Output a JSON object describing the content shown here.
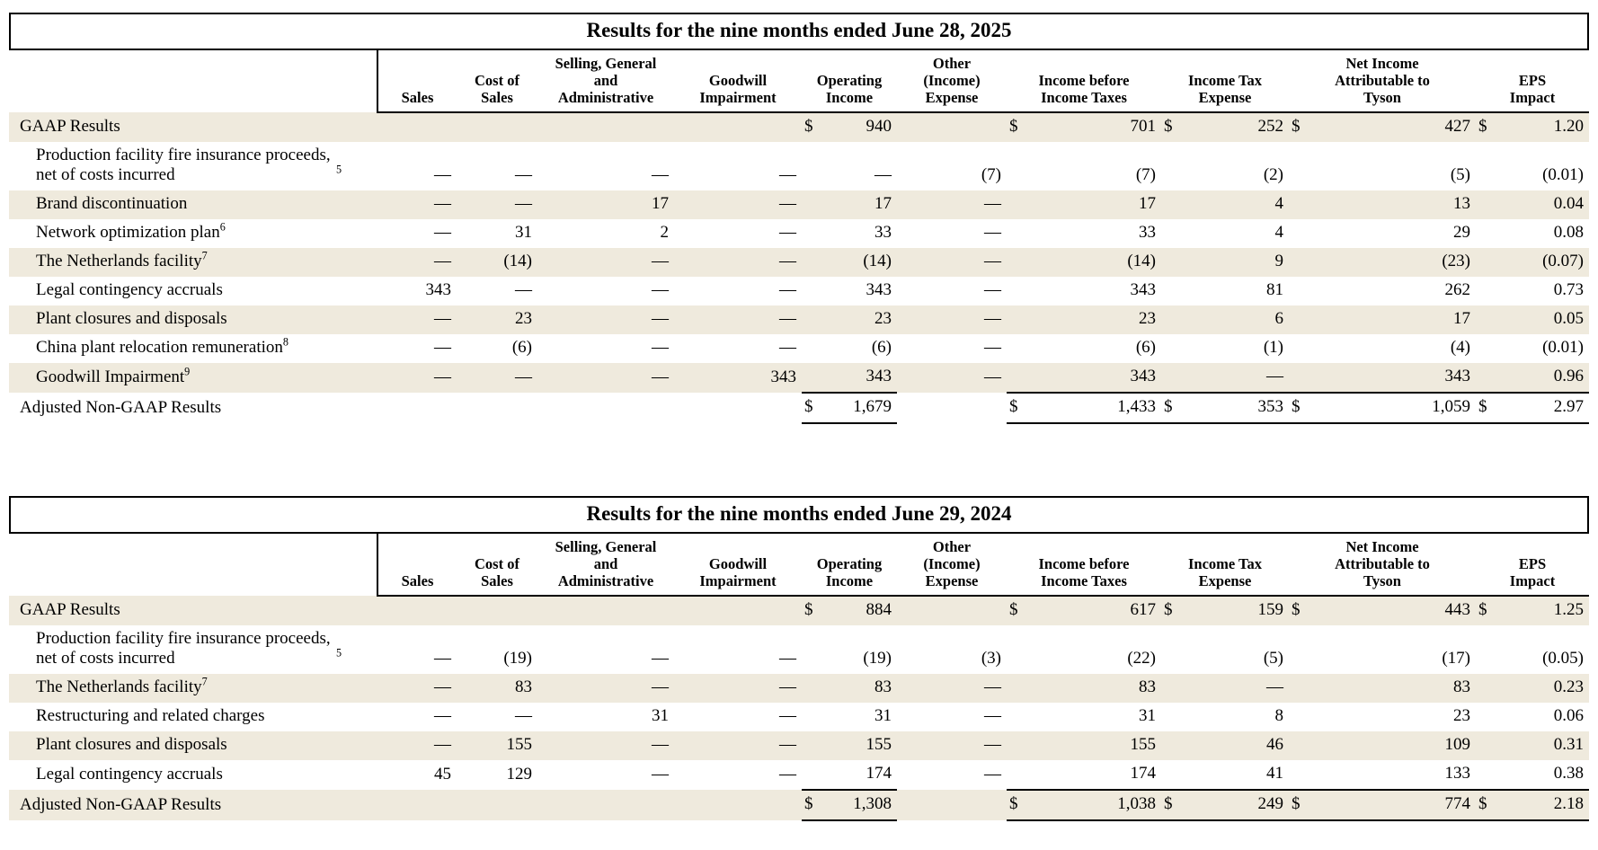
{
  "page": {
    "stripe_color": "#EFEADD",
    "text_color": "#000000",
    "dollar_sign": "$"
  },
  "tables": [
    {
      "title": "Results for the nine months ended June 28, 2025",
      "columns": [
        "Sales",
        "Cost of Sales",
        "Selling, General and Administrative",
        "Goodwill Impairment",
        "Operating Income",
        "Other (Income) Expense",
        "Income before Income Taxes",
        "Income Tax Expense",
        "Net Income Attributable to Tyson",
        "EPS Impact"
      ],
      "rows": [
        {
          "label": "GAAP Results",
          "sup": "",
          "kind": "gaap",
          "indent": false,
          "stripe": true,
          "cells": [
            "",
            "",
            "",
            "",
            "940",
            "",
            "701",
            "252",
            "427",
            "1.20"
          ]
        },
        {
          "label": "Production facility fire insurance proceeds, net of costs incurred",
          "sup": "5",
          "kind": "item",
          "indent": true,
          "stripe": false,
          "cells": [
            "—",
            "—",
            "—",
            "—",
            "—",
            "(7)",
            "(7)",
            "(2)",
            "(5)",
            "(0.01)"
          ]
        },
        {
          "label": "Brand discontinuation",
          "sup": "",
          "kind": "item",
          "indent": true,
          "stripe": true,
          "cells": [
            "—",
            "—",
            "17",
            "—",
            "17",
            "—",
            "17",
            "4",
            "13",
            "0.04"
          ]
        },
        {
          "label": "Network optimization plan",
          "sup": "6",
          "kind": "item",
          "indent": true,
          "stripe": false,
          "cells": [
            "—",
            "31",
            "2",
            "—",
            "33",
            "—",
            "33",
            "4",
            "29",
            "0.08"
          ]
        },
        {
          "label": "The Netherlands facility",
          "sup": "7",
          "kind": "item",
          "indent": true,
          "stripe": true,
          "cells": [
            "—",
            "(14)",
            "—",
            "—",
            "(14)",
            "—",
            "(14)",
            "9",
            "(23)",
            "(0.07)"
          ]
        },
        {
          "label": "Legal contingency accruals",
          "sup": "",
          "kind": "item",
          "indent": true,
          "stripe": false,
          "cells": [
            "343",
            "—",
            "—",
            "—",
            "343",
            "—",
            "343",
            "81",
            "262",
            "0.73"
          ]
        },
        {
          "label": "Plant closures and disposals",
          "sup": "",
          "kind": "item",
          "indent": true,
          "stripe": true,
          "cells": [
            "—",
            "23",
            "—",
            "—",
            "23",
            "—",
            "23",
            "6",
            "17",
            "0.05"
          ]
        },
        {
          "label": "China plant relocation remuneration",
          "sup": "8",
          "kind": "item",
          "indent": true,
          "stripe": false,
          "cells": [
            "—",
            "(6)",
            "—",
            "—",
            "(6)",
            "—",
            "(6)",
            "(1)",
            "(4)",
            "(0.01)"
          ]
        },
        {
          "label": "Goodwill Impairment",
          "sup": "9",
          "kind": "item",
          "indent": true,
          "stripe": true,
          "cells": [
            "—",
            "—",
            "—",
            "343",
            "343",
            "—",
            "343",
            "—",
            "343",
            "0.96"
          ]
        },
        {
          "label": "Adjusted Non-GAAP Results",
          "sup": "",
          "kind": "adjusted",
          "indent": false,
          "stripe": false,
          "cells": [
            "",
            "",
            "",
            "",
            "1,679",
            "",
            "1,433",
            "353",
            "1,059",
            "2.97"
          ]
        }
      ]
    },
    {
      "title": "Results for the nine months ended June 29, 2024",
      "columns": [
        "Sales",
        "Cost of Sales",
        "Selling, General and Administrative",
        "Goodwill Impairment",
        "Operating Income",
        "Other (Income) Expense",
        "Income before Income Taxes",
        "Income Tax Expense",
        "Net Income Attributable to Tyson",
        "EPS Impact"
      ],
      "rows": [
        {
          "label": "GAAP Results",
          "sup": "",
          "kind": "gaap",
          "indent": false,
          "stripe": true,
          "cells": [
            "",
            "",
            "",
            "",
            "884",
            "",
            "617",
            "159",
            "443",
            "1.25"
          ]
        },
        {
          "label": "Production facility fire insurance proceeds, net of costs incurred",
          "sup": "5",
          "kind": "item",
          "indent": true,
          "stripe": false,
          "cells": [
            "—",
            "(19)",
            "—",
            "—",
            "(19)",
            "(3)",
            "(22)",
            "(5)",
            "(17)",
            "(0.05)"
          ]
        },
        {
          "label": "The Netherlands facility",
          "sup": "7",
          "kind": "item",
          "indent": true,
          "stripe": true,
          "cells": [
            "—",
            "83",
            "—",
            "—",
            "83",
            "—",
            "83",
            "—",
            "83",
            "0.23"
          ]
        },
        {
          "label": "Restructuring and related charges",
          "sup": "",
          "kind": "item",
          "indent": true,
          "stripe": false,
          "cells": [
            "—",
            "—",
            "31",
            "—",
            "31",
            "—",
            "31",
            "8",
            "23",
            "0.06"
          ]
        },
        {
          "label": "Plant closures and disposals",
          "sup": "",
          "kind": "item",
          "indent": true,
          "stripe": true,
          "cells": [
            "—",
            "155",
            "—",
            "—",
            "155",
            "—",
            "155",
            "46",
            "109",
            "0.31"
          ]
        },
        {
          "label": "Legal contingency accruals",
          "sup": "",
          "kind": "item",
          "indent": true,
          "stripe": false,
          "cells": [
            "45",
            "129",
            "—",
            "—",
            "174",
            "—",
            "174",
            "41",
            "133",
            "0.38"
          ]
        },
        {
          "label": "Adjusted Non-GAAP Results",
          "sup": "",
          "kind": "adjusted",
          "indent": false,
          "stripe": true,
          "cells": [
            "",
            "",
            "",
            "",
            "1,308",
            "",
            "1,038",
            "249",
            "774",
            "2.18"
          ]
        }
      ]
    }
  ]
}
